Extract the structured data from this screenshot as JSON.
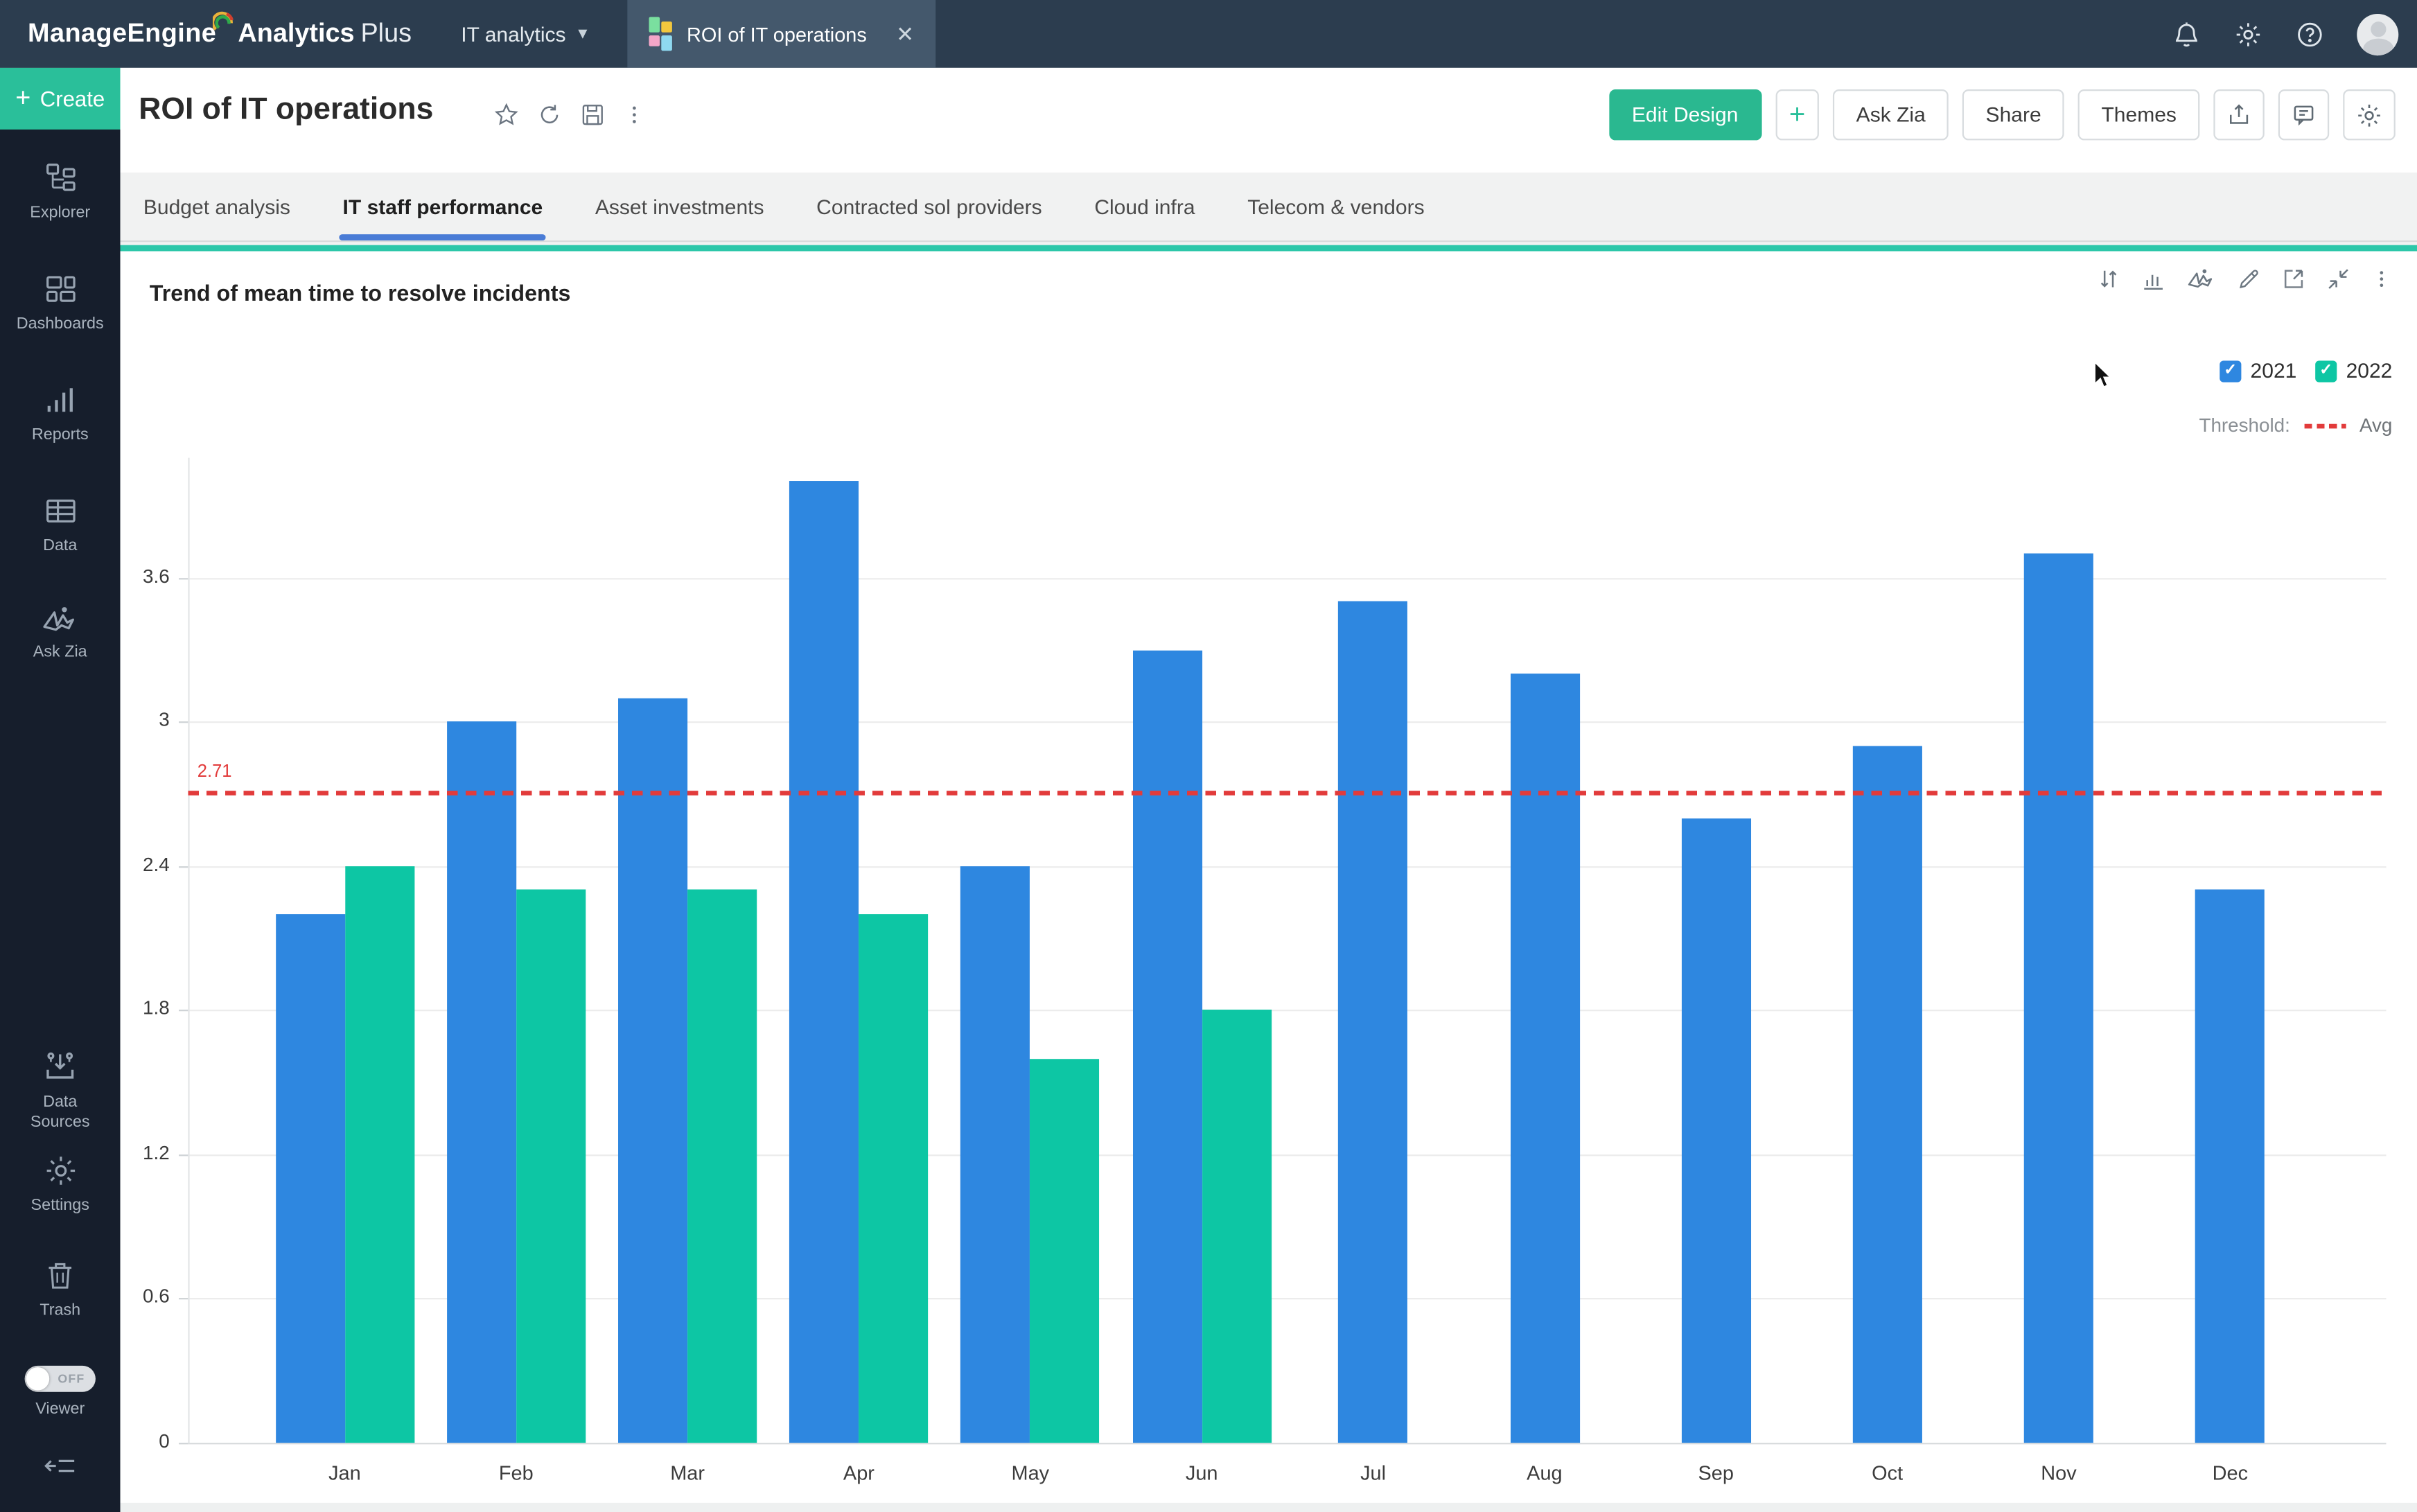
{
  "topbar": {
    "brand_manage": "ManageEngine",
    "brand_product": "Analytics",
    "brand_suffix": "Plus",
    "workspace": "IT analytics",
    "open_tab": "ROI of IT operations",
    "close_glyph": "✕"
  },
  "sidebar": {
    "create": "Create",
    "items": [
      {
        "label": "Explorer",
        "icon": "explorer-icon"
      },
      {
        "label": "Dashboards",
        "icon": "dashboards-icon"
      },
      {
        "label": "Reports",
        "icon": "reports-icon"
      },
      {
        "label": "Data",
        "icon": "data-icon"
      },
      {
        "label": "Ask Zia",
        "icon": "zia-icon"
      }
    ],
    "items_bottom": [
      {
        "label": "Data Sources",
        "icon": "data-sources-icon"
      },
      {
        "label": "Settings",
        "icon": "settings-icon"
      },
      {
        "label": "Trash",
        "icon": "trash-icon"
      }
    ],
    "viewer": {
      "label": "Viewer",
      "toggle": "OFF"
    }
  },
  "header": {
    "title": "ROI of IT operations",
    "buttons": {
      "edit_design": "Edit Design",
      "add": "+",
      "ask_zia": "Ask Zia",
      "share": "Share",
      "themes": "Themes"
    }
  },
  "tabs": [
    {
      "label": "Budget analysis",
      "active": false
    },
    {
      "label": "IT staff performance",
      "active": true
    },
    {
      "label": "Asset investments",
      "active": false
    },
    {
      "label": "Contracted sol providers",
      "active": false
    },
    {
      "label": "Cloud infra",
      "active": false
    },
    {
      "label": "Telecom & vendors",
      "active": false
    }
  ],
  "chart_data": {
    "type": "bar",
    "title": "Trend of mean time to resolve incidents",
    "categories": [
      "Jan",
      "Feb",
      "Mar",
      "Apr",
      "May",
      "Jun",
      "Jul",
      "Aug",
      "Sep",
      "Oct",
      "Nov",
      "Dec"
    ],
    "series": [
      {
        "name": "2021",
        "color": "#2e87e0",
        "values": [
          2.2,
          3.0,
          3.1,
          4.0,
          2.4,
          3.3,
          3.5,
          3.2,
          2.6,
          2.9,
          3.7,
          2.3
        ]
      },
      {
        "name": "2022",
        "color": "#0dc6a4",
        "values": [
          2.4,
          2.3,
          2.3,
          2.2,
          1.6,
          1.8,
          null,
          null,
          null,
          null,
          null,
          null
        ]
      }
    ],
    "threshold": {
      "label": "Threshold:",
      "name": "Avg",
      "value": 2.71,
      "value_label": "2.71",
      "color": "#e23b3b"
    },
    "y_ticks": [
      {
        "v": 0,
        "label": "0"
      },
      {
        "v": 0.6,
        "label": "0.6"
      },
      {
        "v": 1.2,
        "label": "1.2"
      },
      {
        "v": 1.8,
        "label": "1.8"
      },
      {
        "v": 2.4,
        "label": "2.4"
      },
      {
        "v": 3,
        "label": "3"
      },
      {
        "v": 3.6,
        "label": "3.6"
      }
    ],
    "ylim": [
      0,
      4.1
    ],
    "grid": true,
    "legend_position": "top-right"
  },
  "colors": {
    "topbar_bg": "#2c3d4f",
    "sidebar_bg": "#161e2c",
    "create_green": "#2abf9a",
    "edit_design_green": "#2ab890",
    "accent_teal_line": "#2cc7a9",
    "active_tab_underline": "#4a7cd6",
    "bar_blue": "#2e87e0",
    "bar_teal": "#0dc6a4",
    "threshold_red": "#e23b3b"
  }
}
